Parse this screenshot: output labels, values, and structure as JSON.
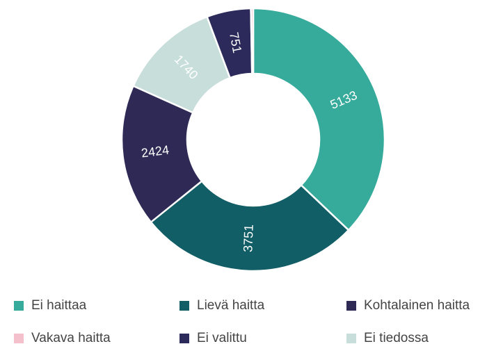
{
  "chart_data": {
    "type": "donut",
    "categories": [
      "Ei haittaa",
      "Lievä haitta",
      "Kohtalainen haitta",
      "Ei tiedossa",
      "Ei valittu",
      "Vakava haitta"
    ],
    "values": [
      5133,
      3751,
      2424,
      1740,
      751,
      40
    ],
    "value_labels": [
      "5133",
      "3751",
      "2424",
      "1740",
      "751",
      null
    ],
    "colors": [
      "#36ab9b",
      "#125e66",
      "#2e2a55",
      "#c7dedb",
      "#2b2a5a",
      "#f3c0cb"
    ],
    "legend": "bottom"
  }
}
